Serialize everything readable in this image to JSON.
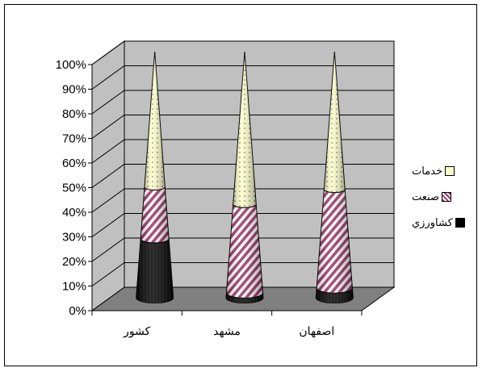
{
  "chart_data": {
    "type": "bar",
    "subtype": "100% stacked 3D cone",
    "categories": [
      "کشور",
      "مشهد",
      "اصفهان"
    ],
    "series": [
      {
        "name": "کشاورزي",
        "values": [
          24,
          2,
          4
        ],
        "color": "#000000",
        "pattern": "solid"
      },
      {
        "name": "صنعت",
        "values": [
          21,
          36,
          40
        ],
        "color": "#993366",
        "pattern": "diagonal-stripes"
      },
      {
        "name": "خدمات",
        "values": [
          55,
          62,
          56
        ],
        "color": "#ffffcc",
        "pattern": "dots"
      }
    ],
    "yticks": [
      "0%",
      "10%",
      "20%",
      "30%",
      "40%",
      "50%",
      "60%",
      "70%",
      "80%",
      "90%",
      "100%"
    ],
    "ylim": [
      0,
      100
    ],
    "grid": true,
    "wall_color": "#c0c0c0",
    "floor_color": "#808080",
    "legend_position": "right"
  }
}
